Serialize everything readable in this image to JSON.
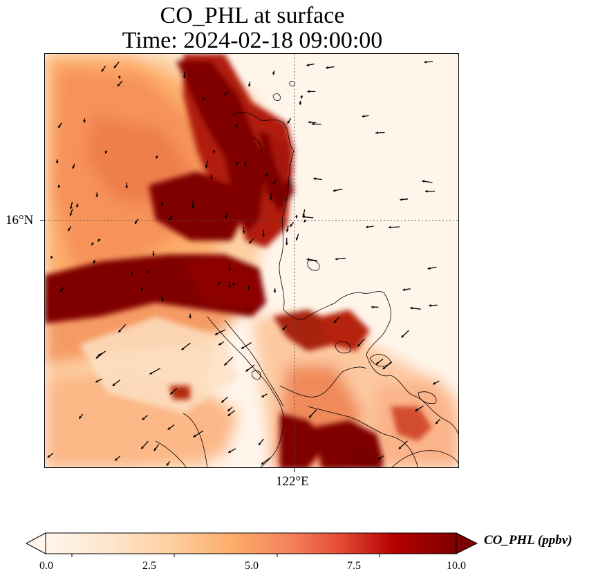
{
  "title": {
    "line1": "CO_PHL at surface",
    "line2": "Time: 2024-02-18 09:00:00"
  },
  "map": {
    "lat_tick_label": "16°N",
    "lon_tick_label": "122°E",
    "gridline_style": "dotted",
    "colormap": [
      "#fff5eb",
      "#fee6ce",
      "#fdd0a2",
      "#fdae6b",
      "#fd8d3c",
      "#f16913",
      "#d94801",
      "#a63603",
      "#7f0000"
    ],
    "field_plumes": [
      {
        "name": "western plume",
        "peak_ppbv": 10.0
      },
      {
        "name": "northern coastal plume",
        "peak_ppbv": 10.0
      },
      {
        "name": "southern plume",
        "peak_ppbv": 10.0
      }
    ],
    "wind_arrows": "black quiver vectors, predominantly westward over sea and southwestward over land"
  },
  "colorbar": {
    "label": "CO_PHL (ppbv)",
    "ticks": [
      "0.0",
      "2.5",
      "5.0",
      "7.5",
      "10.0"
    ],
    "min": 0.0,
    "max": 10.0,
    "extend": "both"
  }
}
